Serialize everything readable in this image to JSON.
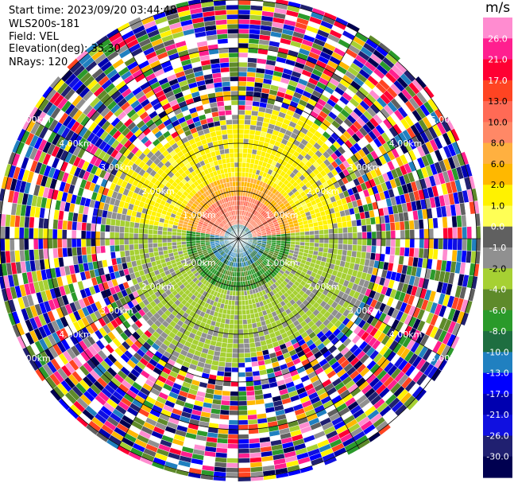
{
  "info": {
    "start_time": "Start time: 2023/09/20 03:44:48",
    "device": "WLS200s-181",
    "field": "Field: VEL",
    "elevation": "Elevation(deg): 35.30",
    "nrays": "NRays: 120"
  },
  "chart_data": {
    "type": "heatmap",
    "projection": "polar-ppi",
    "field": "VEL",
    "unit": "m/s",
    "rays": 120,
    "range_rings": [
      {
        "range_km": 1.0,
        "label": "1.00km"
      },
      {
        "range_km": 2.0,
        "label": "2.00km"
      },
      {
        "range_km": 3.0,
        "label": "3.00km"
      },
      {
        "range_km": 4.0,
        "label": "4.00km"
      },
      {
        "range_km": 5.0,
        "label": "5.00km"
      }
    ],
    "max_range_km": 5.0,
    "colorbar": {
      "label": "m/s",
      "ticks": [
        "26.0",
        "21.0",
        "17.0",
        "13.0",
        "10.0",
        "8.0",
        "6.0",
        "2.0",
        "1.0",
        "0.0",
        "-1.0",
        "-2.0",
        "-4.0",
        "-6.0",
        "-8.0",
        "-10.0",
        "-13.0",
        "-17.0",
        "-21.0",
        "-26.0",
        "-30.0"
      ],
      "colors": [
        "#ff8cd0",
        "#ff1f8f",
        "#ff0033",
        "#ff4422",
        "#ff6a55",
        "#ff8866",
        "#ffb040",
        "#ffb800",
        "#fff200",
        "#ffff55",
        "#606060",
        "#909090",
        "#a6d033",
        "#5e8a2a",
        "#2a9a2a",
        "#1e6e40",
        "#2080c0",
        "#0000ff",
        "#0000b0",
        "#1010e0",
        "#202070",
        "#000050"
      ]
    }
  }
}
